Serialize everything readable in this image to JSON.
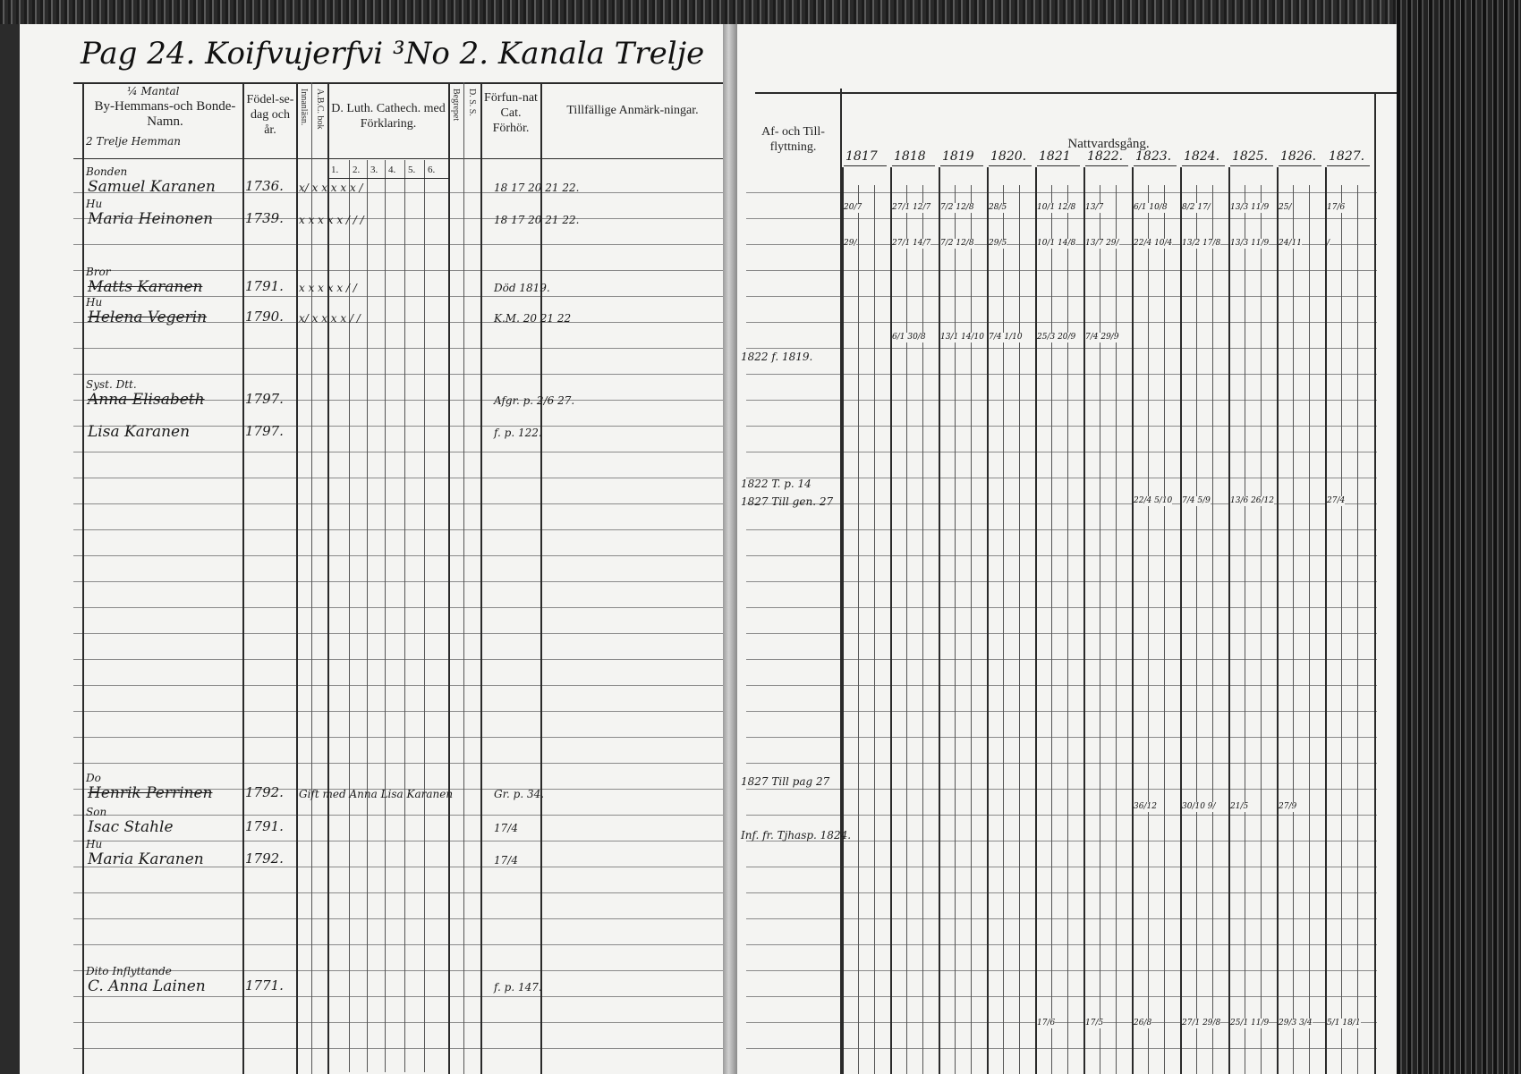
{
  "left_page": {
    "title": "Pag 24. Koifvujerfvi ³No 2. Kanala Trelje",
    "headers": {
      "name_note": "¼ Mantal",
      "name": "By-Hemmans-och Bonde-Namn.",
      "name_sub": "2 Trelje Hemman",
      "birth": "Födel-se-dag och år.",
      "rot_1": "Innanläsn.",
      "rot_2": "A.B.C. bok",
      "catechism": "D. Luth. Cathech. med Förklaring.",
      "rot_3": "Begrepet",
      "rot_4": "D. S. S.",
      "forfunnat": "Förfun-nat Cat. Förhör.",
      "remarks": "Tillfällige Anmärk-ningar.",
      "sub_cols": [
        "1.",
        "2.",
        "3.",
        "4.",
        "5.",
        "6."
      ]
    },
    "entries": [
      {
        "role": "Bonden",
        "name": "Samuel Karanen",
        "born": "1736.",
        "marks": "x/  x  x  x  x  x  /",
        "remark": "18 17 20 21 22."
      },
      {
        "role": "Hu",
        "name": "Maria Heinonen",
        "born": "1739.",
        "marks": "x x  x  x  x  /  /  /",
        "remark": "18 17 20 21 22."
      },
      {
        "role": "Bror",
        "name": "Matts Karanen",
        "born": "1791.",
        "marks": "x  x  x  x  x  /  /",
        "remark": "Död 1819."
      },
      {
        "role": "Hu",
        "name": "Helena Vegerin",
        "born": "1790.",
        "marks": "x/  x  x  x  x  /  /",
        "remark": "K.M. 20 21 22"
      },
      {
        "role": "Syst. Dtt.",
        "name": "Anna Elisabeth",
        "born": "1797.",
        "marks": "",
        "remark": "Afgr. p. 2/6 27."
      },
      {
        "role": "",
        "name": "Lisa Karanen",
        "born": "1797.",
        "marks": "",
        "remark": "f. p. 122."
      },
      {
        "role": "Do",
        "name": "Henrik Perrinen",
        "born": "1792.",
        "marks": "Gift med Anna Lisa Karanen",
        "remark": "Gr. p. 34."
      },
      {
        "role": "Son",
        "name": "Isac Stahle",
        "born": "1791.",
        "marks": "",
        "remark": "17/4"
      },
      {
        "role": "Hu",
        "name": "Maria Karanen",
        "born": "1792.",
        "marks": "",
        "remark": "17/4"
      },
      {
        "role": "Dito Inflyttande",
        "name": "C. Anna Lainen",
        "born": "1771.",
        "marks": "",
        "remark": "f. p. 147."
      }
    ]
  },
  "right_page": {
    "headers": {
      "moving": "Af- och Till-flyttning.",
      "communion": "Nattvardsgång."
    },
    "years": [
      "1817",
      "1818",
      "1819",
      "1820.",
      "1821",
      "1822.",
      "1823.",
      "1824.",
      "1825.",
      "1826.",
      "1827."
    ],
    "moving_notes": [
      "1822 f. 1819.",
      "1822 T. p. 14",
      "1827 Till gen. 27",
      "1827 Till pag 27",
      "Inf. fr. Tjhasp. 1824."
    ],
    "communion_rows": [
      {
        "cells": [
          "20/7",
          "27/1 12/7",
          "7/2 12/8",
          "28/5",
          "10/1 12/8",
          "13/7",
          "6/1 10/8",
          "8/2 17/",
          "13/3 11/9",
          "25/",
          "17/6"
        ]
      },
      {
        "cells": [
          "29/",
          "27/1 14/7",
          "7/2 12/8",
          "29/5",
          "10/1 14/8",
          "13/7 29/",
          "22/4 10/4",
          "13/2 17/8",
          "13/3 11/9",
          "24/11",
          "/"
        ]
      },
      {
        "cells": [
          "",
          "6/1 30/8",
          "13/1 14/10",
          "7/4 1/10",
          "25/3 20/9",
          "7/4 29/9",
          "",
          "",
          "",
          "",
          ""
        ]
      },
      {
        "cells": [
          "",
          "",
          "",
          "",
          "",
          "",
          "22/4 5/10",
          "7/4 5/9",
          "13/6 26/12",
          "",
          "27/4"
        ]
      },
      {
        "cells": [
          "",
          "",
          "",
          "",
          "",
          "",
          "36/12",
          "30/10 9/",
          "21/5",
          "27/9",
          ""
        ]
      },
      {
        "cells": [
          "",
          "",
          "",
          "",
          "17/6",
          "17/5",
          "26/8",
          "27/1 29/8",
          "25/1 11/9",
          "29/3 3/4",
          "5/1 18/1"
        ]
      }
    ]
  }
}
